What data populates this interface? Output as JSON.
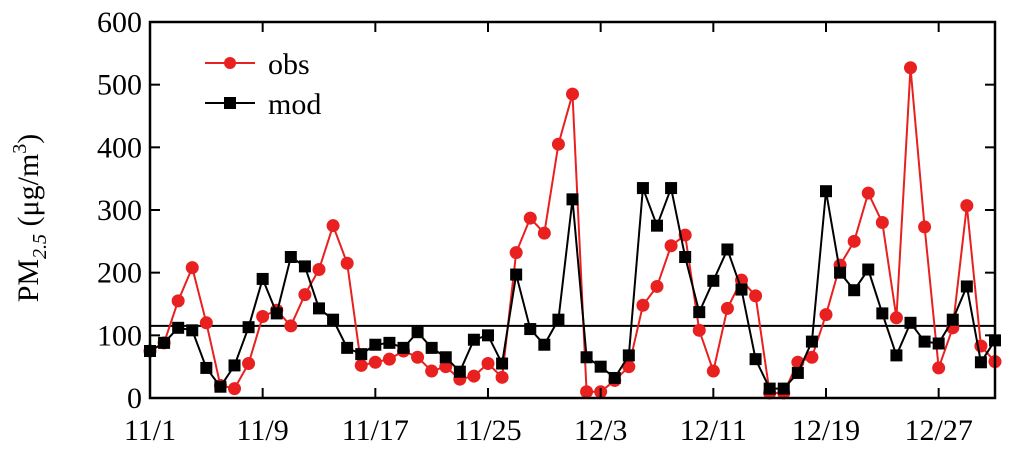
{
  "chart_data": {
    "type": "line",
    "ylabel_main": "PM",
    "ylabel_sub": "2.5",
    "ylabel_unit_pre": " (μg/m",
    "ylabel_unit_sup": "3",
    "ylabel_unit_post": ")",
    "ylim": [
      0,
      600
    ],
    "xlim": [
      1,
      61
    ],
    "yticks": [
      0,
      100,
      200,
      300,
      400,
      500,
      600
    ],
    "xtick_labels": [
      {
        "label": "11/1",
        "day": 1
      },
      {
        "label": "11/9",
        "day": 9
      },
      {
        "label": "11/17",
        "day": 17
      },
      {
        "label": "11/25",
        "day": 25
      },
      {
        "label": "12/3",
        "day": 33
      },
      {
        "label": "12/11",
        "day": 41
      },
      {
        "label": "12/19",
        "day": 49
      },
      {
        "label": "12/27",
        "day": 57
      }
    ],
    "reference_line": 115,
    "legend_placement": "top-left",
    "grid": false,
    "series": [
      {
        "name": "obs",
        "color": "#e8201f",
        "marker": "circle",
        "values": [
          75,
          88,
          155,
          208,
          120,
          20,
          15,
          55,
          130,
          140,
          115,
          165,
          205,
          275,
          215,
          52,
          57,
          62,
          75,
          65,
          43,
          50,
          30,
          35,
          55,
          33,
          232,
          287,
          263,
          405,
          485,
          10,
          10,
          28,
          50,
          148,
          178,
          243,
          260,
          108,
          43,
          143,
          188,
          163,
          8,
          8,
          57,
          65,
          133,
          212,
          250,
          327,
          280,
          128,
          527,
          273,
          48,
          112,
          307,
          83,
          58
        ]
      },
      {
        "name": "mod",
        "color": "#000000",
        "marker": "square",
        "values": [
          75,
          88,
          112,
          108,
          48,
          18,
          52,
          113,
          190,
          135,
          225,
          210,
          143,
          125,
          80,
          70,
          85,
          88,
          80,
          105,
          80,
          65,
          42,
          93,
          100,
          55,
          197,
          110,
          85,
          125,
          317,
          65,
          50,
          32,
          68,
          335,
          275,
          335,
          225,
          137,
          187,
          237,
          173,
          62,
          15,
          15,
          40,
          90,
          330,
          200,
          172,
          205,
          135,
          68,
          120,
          90,
          87,
          125,
          178,
          57,
          92
        ]
      }
    ]
  }
}
